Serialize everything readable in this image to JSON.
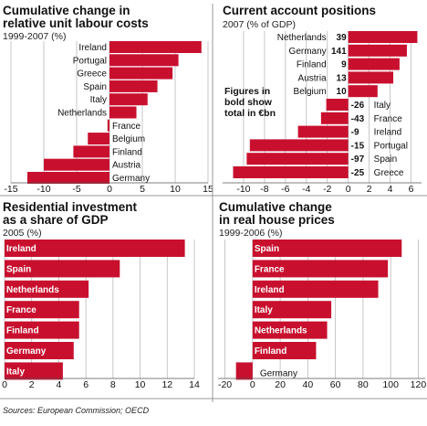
{
  "source": "Sources: European Commission; OECD",
  "chart_data": [
    {
      "type": "bar",
      "orientation": "horizontal",
      "title": "Cumulative change in relative unit labour costs",
      "subtitle": "1999-2007 (%)",
      "categories": [
        "Ireland",
        "Portugal",
        "Greece",
        "Spain",
        "Italy",
        "Netherlands",
        "France",
        "Belgium",
        "Finland",
        "Austria",
        "Germany"
      ],
      "values": [
        14.0,
        10.5,
        9.6,
        7.3,
        5.8,
        4.1,
        -0.3,
        -3.3,
        -5.5,
        -10.0,
        -12.5
      ],
      "xlim": [
        -15,
        15
      ],
      "xticks": [
        -15,
        -10,
        -5,
        0,
        5,
        10,
        15
      ],
      "grid": true,
      "bar_color": "#c8102e"
    },
    {
      "type": "bar",
      "orientation": "horizontal",
      "title": "Current account positions",
      "subtitle": "2007 (% of GDP)",
      "categories": [
        "Netherlands",
        "Germany",
        "Finland",
        "Austria",
        "Belgium",
        "Italy",
        "France",
        "Ireland",
        "Portugal",
        "Spain",
        "Greece"
      ],
      "values": [
        6.6,
        5.6,
        4.9,
        4.3,
        2.8,
        -2.1,
        -2.6,
        -4.8,
        -9.4,
        -9.7,
        -11.0
      ],
      "bold_values": [
        "39",
        "141",
        "9",
        "13",
        "10",
        "-26",
        "-43",
        "-9",
        "-15",
        "-97",
        "-25"
      ],
      "annotation": "Figures in bold show total in €bn",
      "xlim": [
        -12,
        7
      ],
      "xticks": [
        -10,
        -8,
        -6,
        -4,
        -2,
        0,
        2,
        4,
        6
      ],
      "grid": true,
      "bar_color": "#c8102e"
    },
    {
      "type": "bar",
      "orientation": "horizontal",
      "title": "Residential investment as a share of GDP",
      "subtitle": "2005 (%)",
      "categories": [
        "Ireland",
        "Spain",
        "Netherlands",
        "France",
        "Finland",
        "Germany",
        "Italy"
      ],
      "values": [
        13.3,
        8.5,
        6.2,
        5.5,
        5.5,
        5.1,
        4.3
      ],
      "xlim": [
        0,
        14
      ],
      "xticks": [
        0,
        2,
        4,
        6,
        8,
        10,
        12,
        14
      ],
      "grid": true,
      "bar_color": "#c8102e"
    },
    {
      "type": "bar",
      "orientation": "horizontal",
      "title": "Cumulative change in real house prices",
      "subtitle": "1999-2006 (%)",
      "categories": [
        "Spain",
        "France",
        "Ireland",
        "Italy",
        "Netherlands",
        "Finland",
        "Germany"
      ],
      "values": [
        108,
        98,
        91,
        57,
        54,
        46,
        -12
      ],
      "xlim": [
        -25,
        125
      ],
      "xticks": [
        -20,
        0,
        20,
        40,
        60,
        80,
        100,
        120
      ],
      "grid": true,
      "bar_color": "#c8102e"
    }
  ]
}
